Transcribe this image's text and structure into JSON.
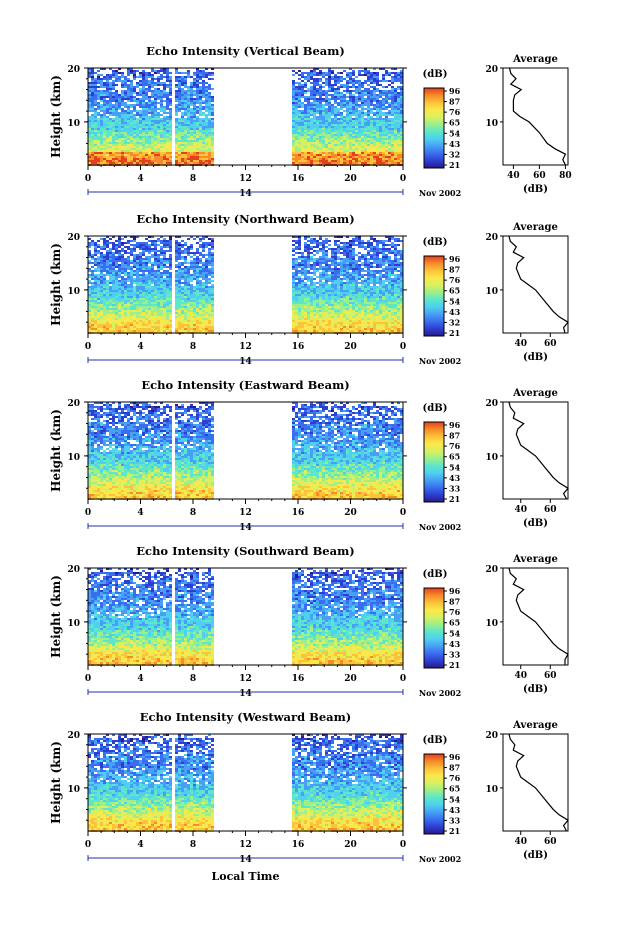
{
  "panels_title_prefix": "Echo Intensity",
  "xlabel": "Local Time",
  "avg_title": "Average",
  "avg_xlabel": "(dB)",
  "ylabel": "Height (km)",
  "cbar_label": "(dB)",
  "date_day": "14",
  "date_month_year": "Nov 2002",
  "time_ticks": [
    "0",
    "4",
    "8",
    "12",
    "16",
    "20",
    "0"
  ],
  "height_ticks": [
    "10",
    "20"
  ],
  "colormap": [
    "#2a1a8a",
    "#2c3fd0",
    "#3a6ef0",
    "#47a0f5",
    "#4fd0f0",
    "#5de6c8",
    "#9cef8a",
    "#d8f060",
    "#fbe84a",
    "#fbc23a",
    "#f78a2a",
    "#e3401e"
  ],
  "chart_data": [
    {
      "type": "heatmap",
      "title": "Echo Intensity (Vertical Beam)",
      "beam": "Vertical Beam",
      "xlabel": "",
      "ylabel": "Height (km)",
      "xlim": [
        0,
        24
      ],
      "ylim": [
        2,
        20
      ],
      "data_gap_hours": [
        [
          9.5,
          15.5
        ]
      ],
      "colorbar_ticks": [
        "96",
        "87",
        "76",
        "65",
        "54",
        "43",
        "32",
        "21"
      ],
      "average_profile": {
        "xticks": [
          "40",
          "60",
          "80"
        ],
        "xlim": [
          32,
          82
        ],
        "height_km": [
          2,
          3,
          4,
          5,
          6,
          8,
          10,
          11,
          12,
          14,
          15,
          16,
          17,
          18,
          19,
          20
        ],
        "value_db": [
          80,
          78,
          80,
          72,
          66,
          60,
          52,
          45,
          40,
          40,
          41,
          46,
          38,
          42,
          38,
          37
        ]
      }
    },
    {
      "type": "heatmap",
      "title": "Echo Intensity (Northward Beam)",
      "beam": "Northward Beam",
      "xlabel": "",
      "ylabel": "Height (km)",
      "xlim": [
        0,
        24
      ],
      "ylim": [
        2,
        20
      ],
      "data_gap_hours": [
        [
          9.5,
          15.5
        ]
      ],
      "colorbar_ticks": [
        "96",
        "87",
        "76",
        "65",
        "54",
        "43",
        "32",
        "21"
      ],
      "average_profile": {
        "xticks": [
          "40",
          "60"
        ],
        "xlim": [
          28,
          72
        ],
        "height_km": [
          2,
          3,
          4,
          5,
          6,
          8,
          10,
          11,
          12,
          14,
          15,
          16,
          17,
          18,
          19,
          20
        ],
        "value_db": [
          70,
          69,
          72,
          66,
          62,
          56,
          50,
          45,
          40,
          37,
          38,
          42,
          35,
          37,
          33,
          32
        ]
      }
    },
    {
      "type": "heatmap",
      "title": "Echo Intensity (Eastward Beam)",
      "beam": "Eastward Beam",
      "xlabel": "",
      "ylabel": "Height (km)",
      "xlim": [
        0,
        24
      ],
      "ylim": [
        2,
        20
      ],
      "data_gap_hours": [
        [
          9.5,
          15.5
        ]
      ],
      "colorbar_ticks": [
        "96",
        "87",
        "76",
        "65",
        "54",
        "43",
        "33",
        "21"
      ],
      "average_profile": {
        "xticks": [
          "40",
          "60"
        ],
        "xlim": [
          28,
          72
        ],
        "height_km": [
          2,
          3,
          4,
          5,
          6,
          8,
          10,
          11,
          12,
          14,
          15,
          16,
          17,
          18,
          19,
          20
        ],
        "value_db": [
          71,
          69,
          72,
          66,
          62,
          56,
          50,
          45,
          40,
          37,
          38,
          42,
          35,
          36,
          33,
          32
        ]
      }
    },
    {
      "type": "heatmap",
      "title": "Echo Intensity (Southward Beam)",
      "beam": "Southward Beam",
      "xlabel": "",
      "ylabel": "Height (km)",
      "xlim": [
        0,
        24
      ],
      "ylim": [
        2,
        20
      ],
      "data_gap_hours": [
        [
          9.5,
          15.5
        ]
      ],
      "colorbar_ticks": [
        "96",
        "87",
        "76",
        "65",
        "54",
        "43",
        "33",
        "21"
      ],
      "average_profile": {
        "xticks": [
          "40",
          "60"
        ],
        "xlim": [
          28,
          72
        ],
        "height_km": [
          2,
          3,
          4,
          5,
          6,
          8,
          10,
          11,
          12,
          14,
          15,
          16,
          17,
          18,
          19,
          20
        ],
        "value_db": [
          70,
          70,
          72,
          66,
          62,
          56,
          50,
          45,
          40,
          37,
          38,
          42,
          35,
          37,
          33,
          32
        ]
      }
    },
    {
      "type": "heatmap",
      "title": "Echo Intensity (Westward Beam)",
      "beam": "Westward Beam",
      "xlabel": "Local Time",
      "ylabel": "Height (km)",
      "xlim": [
        0,
        24
      ],
      "ylim": [
        2,
        20
      ],
      "data_gap_hours": [
        [
          9.5,
          15.5
        ]
      ],
      "colorbar_ticks": [
        "96",
        "87",
        "76",
        "65",
        "54",
        "43",
        "33",
        "21"
      ],
      "average_profile": {
        "xticks": [
          "40",
          "60"
        ],
        "xlim": [
          28,
          72
        ],
        "height_km": [
          2,
          3,
          4,
          5,
          6,
          8,
          10,
          11,
          12,
          14,
          15,
          16,
          17,
          18,
          19,
          20
        ],
        "value_db": [
          71,
          69,
          72,
          66,
          62,
          56,
          50,
          45,
          40,
          37,
          38,
          42,
          35,
          36,
          33,
          32
        ]
      }
    }
  ]
}
